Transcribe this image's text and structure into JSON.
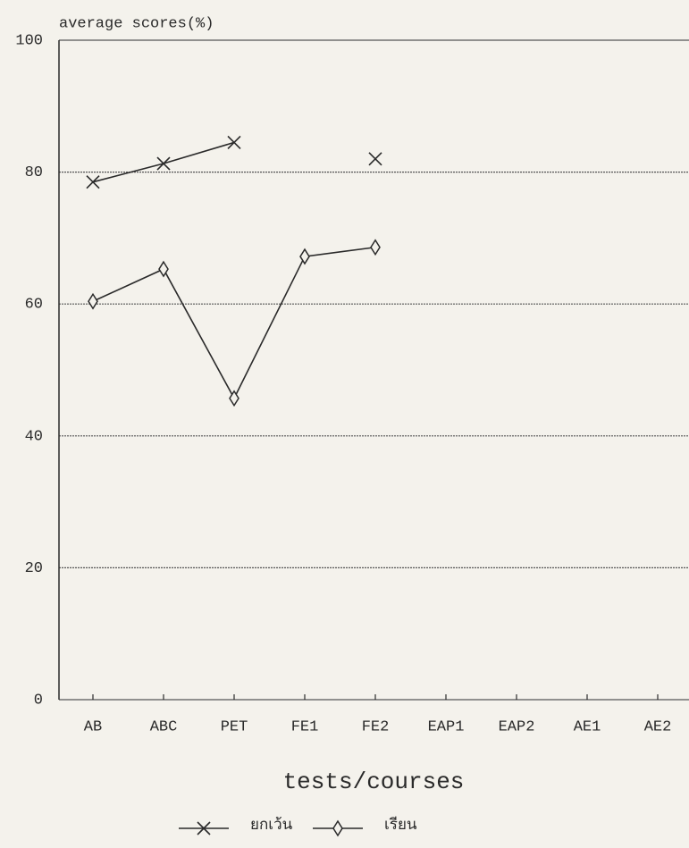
{
  "chart_data": {
    "type": "line",
    "title": "average scores(%)",
    "x_label": "tests/courses",
    "categories": [
      "AB",
      "ABC",
      "PET",
      "FE1",
      "FE2",
      "EAP1",
      "EAP2",
      "AE1",
      "AE2"
    ],
    "series": [
      {
        "name": "ยกเว้น",
        "color": "#2a2a2a",
        "marker": "x",
        "values": [
          78.5,
          81.3,
          84.5,
          null,
          82.0,
          null,
          null,
          null,
          null
        ]
      },
      {
        "name": "เรียน",
        "color": "#2a2a2a",
        "marker": "diamond",
        "values": [
          60.4,
          65.3,
          45.7,
          67.2,
          68.6,
          null,
          null,
          null,
          null
        ]
      }
    ],
    "ylim": [
      0,
      100
    ],
    "yticks": [
      0,
      20,
      40,
      60,
      80,
      100
    ],
    "grid": true
  }
}
